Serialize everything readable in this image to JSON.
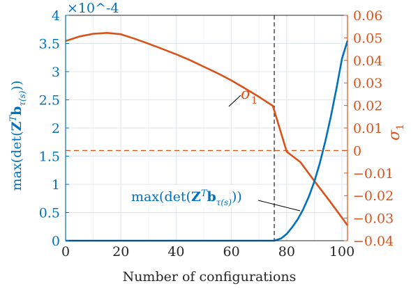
{
  "chart_data": {
    "type": "line",
    "x": [
      0,
      5,
      10,
      15,
      20,
      25,
      30,
      35,
      40,
      45,
      50,
      55,
      60,
      65,
      70,
      75,
      80,
      85,
      90,
      95,
      100,
      102
    ],
    "xlim": [
      0,
      102
    ],
    "xticks": [
      "0",
      "20",
      "40",
      "60",
      "80",
      "100"
    ],
    "xlabel": "Number of configurations",
    "left_axis": {
      "label": "max(det(Z^T b_τ(s)))",
      "ylim": [
        0,
        4
      ],
      "ticks": [
        "0",
        "0.5",
        "1",
        "1.5",
        "2",
        "2.5",
        "3",
        "3.5",
        "4"
      ],
      "multiplier": "×10^-4",
      "color": "#1f77b4"
    },
    "right_axis": {
      "label": "σ1",
      "ylim": [
        -0.04,
        0.06
      ],
      "ticks": [
        "-0.04",
        "-0.03",
        "-0.02",
        "-0.01",
        "0",
        "0.01",
        "0.02",
        "0.03",
        "0.04",
        "0.05",
        "0.06"
      ],
      "color": "#d95319"
    },
    "series": [
      {
        "name": "σ1",
        "axis": "right",
        "color": "#d95319",
        "x": [
          0,
          5,
          10,
          15,
          20,
          25,
          30,
          35,
          40,
          45,
          50,
          55,
          60,
          65,
          70,
          75,
          80,
          85,
          90,
          95,
          100,
          102
        ],
        "values": [
          0.0486,
          0.0506,
          0.0518,
          0.0522,
          0.0516,
          0.0496,
          0.0474,
          0.0451,
          0.0427,
          0.0401,
          0.0372,
          0.0343,
          0.0311,
          0.0275,
          0.0238,
          0.0198,
          -0.0005,
          -0.0052,
          -0.0135,
          -0.0215,
          -0.0298,
          -0.0332
        ]
      },
      {
        "name": "max(det(Z^T b_τ(s)))",
        "axis": "left",
        "color": "#0072bd",
        "x": [
          0,
          75.5,
          78,
          80,
          82,
          84,
          86,
          88,
          90,
          92,
          94,
          96,
          98,
          100,
          102
        ],
        "values": [
          0,
          0,
          0.04,
          0.12,
          0.24,
          0.38,
          0.56,
          0.78,
          1.05,
          1.38,
          1.77,
          2.21,
          2.7,
          3.23,
          3.55
        ]
      }
    ],
    "annotations": {
      "vline_x": 75.5,
      "hline_right_y": 0,
      "sigma_label": "σ",
      "sigma_sub": "1",
      "max_label_prefix": "max(det(",
      "max_label_Z": "Z",
      "max_label_T": "T",
      "max_label_b": "b",
      "max_label_sub": "τ(s)",
      "max_label_suffix": "))"
    },
    "grid": true
  }
}
